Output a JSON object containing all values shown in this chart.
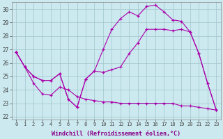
{
  "xlabel": "Windchill (Refroidissement éolien,°C)",
  "xlim": [
    -0.5,
    23.5
  ],
  "ylim": [
    21.8,
    30.5
  ],
  "yticks": [
    22,
    23,
    24,
    25,
    26,
    27,
    28,
    29,
    30
  ],
  "xticks": [
    0,
    1,
    2,
    3,
    4,
    5,
    6,
    7,
    8,
    9,
    10,
    11,
    12,
    13,
    14,
    15,
    16,
    17,
    18,
    19,
    20,
    21,
    22,
    23
  ],
  "bg_color": "#cbe9ef",
  "line_color": "#aa00aa",
  "grid_color": "#a0c4cc",
  "line1_x": [
    0,
    1,
    2,
    3,
    4,
    5,
    6,
    7,
    8,
    9,
    10,
    11,
    12,
    13,
    14,
    15,
    16,
    17,
    18,
    19,
    20,
    21,
    22,
    23
  ],
  "line1_y": [
    26.8,
    25.7,
    25.0,
    24.7,
    24.7,
    25.2,
    23.3,
    22.7,
    24.8,
    25.4,
    25.3,
    25.5,
    25.7,
    26.7,
    27.5,
    28.5,
    28.5,
    28.5,
    28.4,
    28.5,
    28.3,
    26.7,
    24.5,
    22.5
  ],
  "line2_x": [
    0,
    1,
    2,
    3,
    4,
    5,
    6,
    7,
    8,
    9,
    10,
    11,
    12,
    13,
    14,
    15,
    16,
    17,
    18,
    19,
    20,
    21,
    22,
    23
  ],
  "line2_y": [
    26.8,
    25.7,
    25.0,
    24.7,
    24.7,
    25.2,
    23.3,
    22.7,
    24.8,
    25.4,
    27.0,
    28.5,
    29.3,
    29.8,
    29.5,
    30.2,
    30.3,
    29.8,
    29.2,
    29.1,
    28.3,
    26.7,
    24.5,
    22.5
  ],
  "line3_x": [
    0,
    1,
    2,
    3,
    4,
    5,
    6,
    7,
    8,
    9,
    10,
    11,
    12,
    13,
    14,
    15,
    16,
    17,
    18,
    19,
    20,
    21,
    22,
    23
  ],
  "line3_y": [
    26.8,
    25.7,
    24.5,
    23.7,
    23.6,
    24.2,
    24.0,
    23.5,
    23.3,
    23.2,
    23.1,
    23.1,
    23.0,
    23.0,
    23.0,
    23.0,
    23.0,
    23.0,
    23.0,
    22.8,
    22.8,
    22.7,
    22.6,
    22.5
  ]
}
